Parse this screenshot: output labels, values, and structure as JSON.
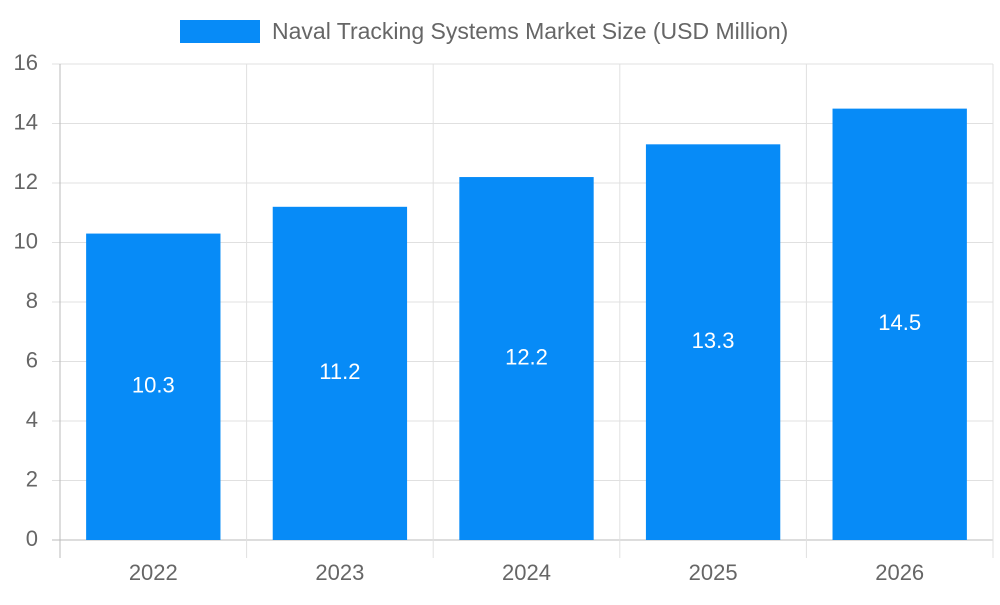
{
  "chart_data": {
    "type": "bar",
    "categories": [
      "2022",
      "2023",
      "2024",
      "2025",
      "2026"
    ],
    "series": [
      {
        "name": "Naval Tracking Systems Market Size (USD Million)",
        "color": "#078bf7",
        "values": [
          10.3,
          11.2,
          12.2,
          13.3,
          14.5
        ]
      }
    ],
    "ylim": [
      0,
      16
    ],
    "yticks": [
      0,
      2,
      4,
      6,
      8,
      10,
      12,
      14,
      16
    ],
    "grid": true,
    "legend": "top"
  }
}
